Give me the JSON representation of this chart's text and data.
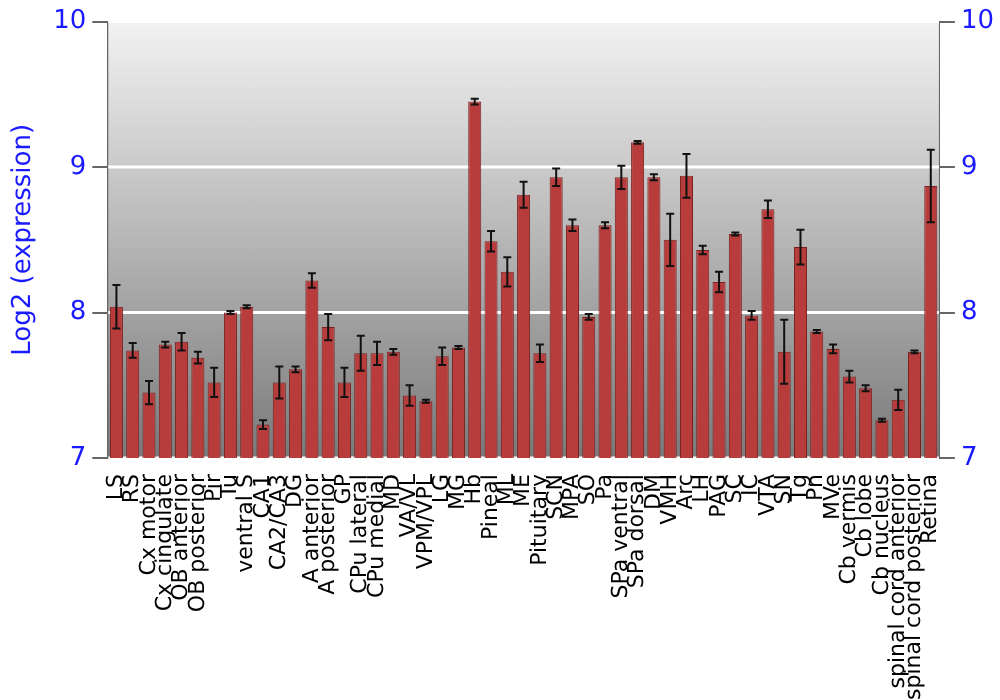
{
  "chart_data": {
    "type": "bar",
    "ylabel": "Log2 (expression)",
    "categories": [
      "LS",
      "RS",
      "Cx motor",
      "Cx cingulate",
      "OB anterior",
      "OB posterior",
      "Pir",
      "Tu",
      "ventral S",
      "CA1",
      "CA2/CA3",
      "DG",
      "A anterior",
      "A posterior",
      "GP",
      "CPu lateral",
      "CPu medial",
      "MD",
      "VA/VL",
      "VPM/VPL",
      "LG",
      "MG",
      "Hb",
      "Pineal",
      "ML",
      "ME",
      "Pituitary",
      "SCN",
      "MPA",
      "SO",
      "Pa",
      "SPa ventral",
      "SPa dorsal",
      "DM",
      "VMH",
      "Arc",
      "LH",
      "PAG",
      "SC",
      "IC",
      "VTA",
      "SN",
      "Tg",
      "Pn",
      "MVe",
      "Cb vermis",
      "Cb lobe",
      "Cb nucleus",
      "spinal cord anterior",
      "spinal cord posterior",
      "Retina"
    ],
    "values": [
      8.04,
      7.74,
      7.45,
      7.78,
      7.8,
      7.69,
      7.52,
      8.0,
      8.04,
      7.23,
      7.52,
      7.61,
      8.22,
      7.9,
      7.52,
      7.72,
      7.72,
      7.73,
      7.43,
      7.39,
      7.7,
      7.76,
      9.45,
      8.49,
      8.28,
      8.81,
      7.72,
      8.93,
      8.6,
      7.97,
      8.6,
      8.93,
      9.17,
      8.93,
      8.5,
      8.94,
      8.43,
      8.21,
      8.54,
      7.98,
      8.71,
      7.73,
      8.45,
      7.87,
      7.75,
      7.56,
      7.48,
      7.26,
      7.4,
      7.73,
      8.87
    ],
    "errors": [
      0.15,
      0.05,
      0.08,
      0.02,
      0.06,
      0.04,
      0.1,
      0.01,
      0.01,
      0.03,
      0.11,
      0.02,
      0.05,
      0.09,
      0.1,
      0.12,
      0.08,
      0.02,
      0.07,
      0.01,
      0.06,
      0.01,
      0.02,
      0.07,
      0.1,
      0.09,
      0.06,
      0.06,
      0.04,
      0.02,
      0.02,
      0.08,
      0.01,
      0.02,
      0.18,
      0.15,
      0.03,
      0.07,
      0.01,
      0.03,
      0.06,
      0.22,
      0.12,
      0.01,
      0.03,
      0.04,
      0.02,
      0.01,
      0.07,
      0.01,
      0.25
    ],
    "color": "#b83c3c",
    "ylim": [
      7,
      10
    ],
    "yticks": [
      7,
      8,
      9,
      10
    ],
    "y2lim": [
      7,
      10
    ],
    "y2ticks": [
      7,
      8,
      9,
      10
    ],
    "grid": "y",
    "legend": false
  }
}
